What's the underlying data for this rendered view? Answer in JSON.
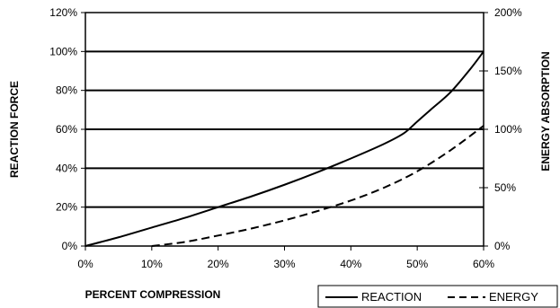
{
  "chart_data": {
    "type": "line",
    "xlabel": "PERCENT COMPRESSION",
    "ylabel": "REACTION FORCE",
    "y2label": "ENERGY ABSORPTION",
    "xlim": [
      0,
      60
    ],
    "ylim": [
      0,
      120
    ],
    "y2lim": [
      0,
      200
    ],
    "x_ticks": [
      "0%",
      "10%",
      "20%",
      "30%",
      "40%",
      "50%",
      "60%"
    ],
    "y_ticks": [
      "0%",
      "20%",
      "40%",
      "60%",
      "80%",
      "100%",
      "120%"
    ],
    "y2_ticks": [
      "0%",
      "50%",
      "100%",
      "150%",
      "200%"
    ],
    "grid": "horizontal",
    "legend_position": "bottom-right",
    "series": [
      {
        "name": "REACTION",
        "axis": "left",
        "style": "solid",
        "color": "#000000",
        "points": [
          [
            0,
            0
          ],
          [
            5,
            4.5
          ],
          [
            10,
            9.5
          ],
          [
            15,
            14.5
          ],
          [
            20,
            20
          ],
          [
            25,
            25.5
          ],
          [
            30,
            31.5
          ],
          [
            35,
            38
          ],
          [
            40,
            45
          ],
          [
            45,
            52.5
          ],
          [
            48,
            58
          ],
          [
            50,
            64
          ],
          [
            52,
            70
          ],
          [
            55,
            79
          ],
          [
            58,
            91
          ],
          [
            60,
            100
          ]
        ]
      },
      {
        "name": "ENERGY",
        "axis": "right",
        "style": "dashed",
        "color": "#000000",
        "points": [
          [
            10,
            0
          ],
          [
            15,
            3.5
          ],
          [
            20,
            9
          ],
          [
            25,
            15
          ],
          [
            30,
            22
          ],
          [
            35,
            30
          ],
          [
            40,
            39
          ],
          [
            45,
            50
          ],
          [
            50,
            64
          ],
          [
            55,
            82
          ],
          [
            60,
            103
          ]
        ]
      }
    ]
  }
}
